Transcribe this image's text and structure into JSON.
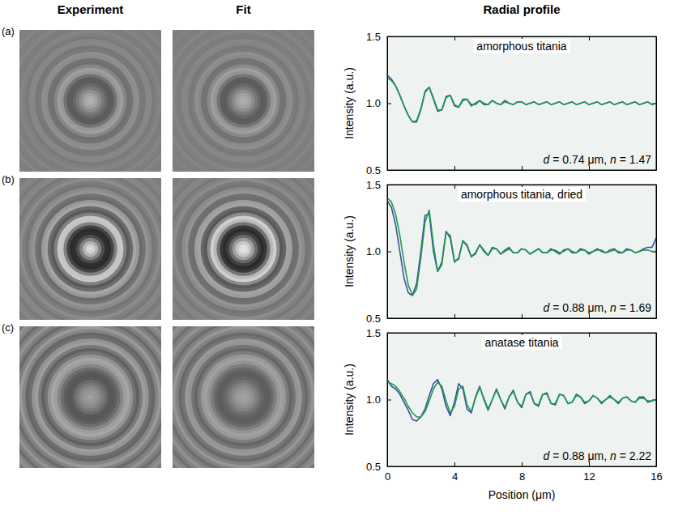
{
  "column_headers": [
    "Experiment",
    "Fit",
    "Radial profile"
  ],
  "chart_data": [
    {
      "type": "line",
      "panel_label": "(a)",
      "title": "amorphous titania",
      "annotation": "d = 0.74 μm, n = 1.47",
      "ylabel": "Intensity (a.u.)",
      "tick_labels": "y",
      "xlim": [
        0,
        16
      ],
      "xticks": [
        0,
        4,
        8,
        12,
        16
      ],
      "ylim": [
        0.5,
        1.5
      ],
      "yticks": [
        0.5,
        {
          "value": 1,
          "label": "1.0"
        },
        1.5
      ],
      "x": [
        0,
        0.25,
        0.5,
        0.75,
        1,
        1.25,
        1.5,
        1.75,
        2,
        2.25,
        2.5,
        2.75,
        3,
        3.25,
        3.5,
        3.75,
        4,
        4.25,
        4.5,
        4.75,
        5,
        5.25,
        5.5,
        5.75,
        6,
        6.25,
        6.5,
        6.75,
        7,
        7.25,
        7.5,
        7.75,
        8,
        8.25,
        8.5,
        8.75,
        9,
        9.25,
        9.5,
        9.75,
        10,
        10.25,
        10.5,
        10.75,
        11,
        11.25,
        11.5,
        11.75,
        12,
        12.25,
        12.5,
        12.75,
        13,
        13.25,
        13.5,
        13.75,
        14,
        14.25,
        14.5,
        14.75,
        15,
        15.25,
        15.5,
        15.75,
        16
      ],
      "series": [
        {
          "color": "#3a4ea0",
          "values": [
            1.21,
            1.18,
            1.13,
            1.06,
            0.98,
            0.91,
            0.86,
            0.86,
            0.95,
            1.09,
            1.12,
            1.03,
            0.94,
            0.95,
            1.05,
            1.06,
            0.98,
            0.97,
            1.03,
            1.03,
            0.98,
            1.0,
            1.02,
            0.99,
            0.99,
            1.02,
            1.0,
            0.99,
            1.02,
            1.0,
            0.99,
            1.01,
            1.01,
            0.99,
            1.0,
            1.01,
            0.99,
            1.0,
            1.01,
            0.99,
            1.0,
            1.01,
            0.99,
            1.0,
            1.01,
            0.99,
            1.0,
            1.01,
            0.99,
            1.0,
            1.01,
            0.99,
            1.0,
            1.01,
            0.99,
            1.0,
            1.01,
            0.99,
            1.0,
            1.01,
            0.99,
            1.0,
            1.01,
            0.99,
            1.0
          ]
        },
        {
          "color": "#1f9a4e",
          "values": [
            1.19,
            1.17,
            1.13,
            1.06,
            0.98,
            0.91,
            0.86,
            0.87,
            0.96,
            1.08,
            1.12,
            1.04,
            0.95,
            0.95,
            1.04,
            1.06,
            0.99,
            0.97,
            1.02,
            1.03,
            0.99,
            0.99,
            1.02,
            1.0,
            0.99,
            1.02,
            1.0,
            0.99,
            1.01,
            1.0,
            0.99,
            1.01,
            1.01,
            0.99,
            1.0,
            1.01,
            0.99,
            1.0,
            1.01,
            0.99,
            1.0,
            1.01,
            0.99,
            1.0,
            1.01,
            0.99,
            1.0,
            1.01,
            0.99,
            1.0,
            1.01,
            0.99,
            1.0,
            1.01,
            0.99,
            1.0,
            1.01,
            0.99,
            1.0,
            1.01,
            0.99,
            1.0,
            1.01,
            0.99,
            1.0
          ]
        }
      ]
    },
    {
      "type": "line",
      "panel_label": "(b)",
      "title": "amorphous titania, dried",
      "annotation": "d = 0.88 μm, n = 1.69",
      "ylabel": "Intensity (a.u.)",
      "tick_labels": "y",
      "xlim": [
        0,
        16
      ],
      "xticks": [
        0,
        4,
        8,
        12,
        16
      ],
      "ylim": [
        0.5,
        1.5
      ],
      "yticks": [
        0.5,
        {
          "value": 1,
          "label": "1.0"
        },
        1.5
      ],
      "x": [
        0,
        0.25,
        0.5,
        0.75,
        1,
        1.25,
        1.5,
        1.75,
        2,
        2.25,
        2.5,
        2.75,
        3,
        3.25,
        3.5,
        3.75,
        4,
        4.25,
        4.5,
        4.75,
        5,
        5.25,
        5.5,
        5.75,
        6,
        6.25,
        6.5,
        6.75,
        7,
        7.25,
        7.5,
        7.75,
        8,
        8.25,
        8.5,
        8.75,
        9,
        9.25,
        9.5,
        9.75,
        10,
        10.25,
        10.5,
        10.75,
        11,
        11.25,
        11.5,
        11.75,
        12,
        12.25,
        12.5,
        12.75,
        13,
        13.25,
        13.5,
        13.75,
        14,
        14.25,
        14.5,
        14.75,
        15,
        15.25,
        15.5,
        15.75,
        16
      ],
      "series": [
        {
          "color": "#3a4ea0",
          "values": [
            1.38,
            1.33,
            1.2,
            1.0,
            0.8,
            0.69,
            0.67,
            0.76,
            1.0,
            1.27,
            1.28,
            1.0,
            0.85,
            0.92,
            1.15,
            1.1,
            0.92,
            0.95,
            1.08,
            1.04,
            0.96,
            0.99,
            1.05,
            1.0,
            0.97,
            1.03,
            1.02,
            0.98,
            1.01,
            1.03,
            0.99,
            0.99,
            1.02,
            1.01,
            0.98,
            1.0,
            1.02,
            0.99,
            0.99,
            1.02,
            1.0,
            0.98,
            1.01,
            1.02,
            0.99,
            0.99,
            1.02,
            1.01,
            0.98,
            1.0,
            1.02,
            1.0,
            0.99,
            1.01,
            1.02,
            0.99,
            0.99,
            1.02,
            1.01,
            0.99,
            1.0,
            1.02,
            1.03,
            1.03,
            1.1
          ]
        },
        {
          "color": "#1f9a4e",
          "values": [
            1.4,
            1.37,
            1.28,
            1.12,
            0.92,
            0.75,
            0.67,
            0.72,
            0.95,
            1.22,
            1.31,
            1.05,
            0.85,
            0.9,
            1.14,
            1.12,
            0.93,
            0.94,
            1.08,
            1.05,
            0.96,
            0.98,
            1.05,
            1.01,
            0.97,
            1.02,
            1.02,
            0.98,
            1.0,
            1.02,
            0.99,
            0.99,
            1.02,
            1.01,
            0.98,
            1.0,
            1.02,
            0.99,
            0.99,
            1.01,
            1.01,
            0.99,
            1.0,
            1.02,
            1.0,
            0.99,
            1.01,
            1.01,
            0.99,
            1.0,
            1.01,
            1.01,
            0.99,
            1.0,
            1.01,
            1.0,
            0.99,
            1.01,
            1.01,
            0.99,
            1.0,
            1.01,
            1.01,
            1.0,
            1.0
          ]
        }
      ]
    },
    {
      "type": "line",
      "panel_label": "(c)",
      "title": "anatase titania",
      "annotation": "d = 0.88 μm, n = 2.22",
      "ylabel": "Intensity (a.u.)",
      "xlabel": "Position (μm)",
      "xlim": [
        0,
        16
      ],
      "xticks": [
        0,
        4,
        8,
        12,
        16
      ],
      "ylim": [
        0.5,
        1.5
      ],
      "yticks": [
        0.5,
        {
          "value": 1,
          "label": "1.0"
        },
        1.5
      ],
      "x": [
        0,
        0.25,
        0.5,
        0.75,
        1,
        1.25,
        1.5,
        1.75,
        2,
        2.25,
        2.5,
        2.75,
        3,
        3.25,
        3.5,
        3.75,
        4,
        4.25,
        4.5,
        4.75,
        5,
        5.25,
        5.5,
        5.75,
        6,
        6.25,
        6.5,
        6.75,
        7,
        7.25,
        7.5,
        7.75,
        8,
        8.25,
        8.5,
        8.75,
        9,
        9.25,
        9.5,
        9.75,
        10,
        10.25,
        10.5,
        10.75,
        11,
        11.25,
        11.5,
        11.75,
        12,
        12.25,
        12.5,
        12.75,
        13,
        13.25,
        13.5,
        13.75,
        14,
        14.25,
        14.5,
        14.75,
        15,
        15.25,
        15.5,
        15.75,
        16
      ],
      "series": [
        {
          "color": "#3a4ea0",
          "values": [
            1.15,
            1.1,
            1.08,
            1.04,
            0.98,
            0.92,
            0.85,
            0.84,
            0.87,
            0.93,
            1.03,
            1.12,
            1.15,
            1.08,
            0.95,
            0.88,
            0.98,
            1.12,
            1.08,
            0.93,
            0.9,
            1.02,
            1.1,
            1.0,
            0.92,
            1.0,
            1.08,
            1.0,
            0.93,
            1.02,
            1.07,
            0.98,
            0.94,
            1.04,
            1.06,
            0.97,
            0.95,
            1.04,
            1.05,
            0.97,
            0.96,
            1.04,
            1.03,
            0.97,
            0.98,
            1.04,
            1.02,
            0.97,
            0.99,
            1.03,
            1.01,
            0.97,
            1.0,
            1.03,
            1.0,
            0.97,
            1.01,
            1.02,
            0.99,
            0.98,
            1.02,
            1.02,
            0.98,
            0.99,
            1.0
          ]
        },
        {
          "color": "#1f9a4e",
          "values": [
            1.13,
            1.12,
            1.1,
            1.06,
            1.01,
            0.95,
            0.9,
            0.87,
            0.87,
            0.91,
            0.99,
            1.08,
            1.13,
            1.1,
            0.99,
            0.9,
            0.95,
            1.08,
            1.1,
            0.96,
            0.91,
            1.01,
            1.09,
            1.01,
            0.93,
            1.0,
            1.07,
            1.0,
            0.94,
            1.02,
            1.06,
            0.98,
            0.95,
            1.04,
            1.05,
            0.97,
            0.96,
            1.04,
            1.04,
            0.97,
            0.97,
            1.04,
            1.03,
            0.97,
            0.98,
            1.03,
            1.02,
            0.98,
            0.99,
            1.03,
            1.01,
            0.98,
            1.0,
            1.02,
            1.0,
            0.98,
            1.01,
            1.02,
            0.99,
            0.98,
            1.01,
            1.01,
            0.99,
            0.99,
            1.0
          ]
        }
      ]
    }
  ]
}
